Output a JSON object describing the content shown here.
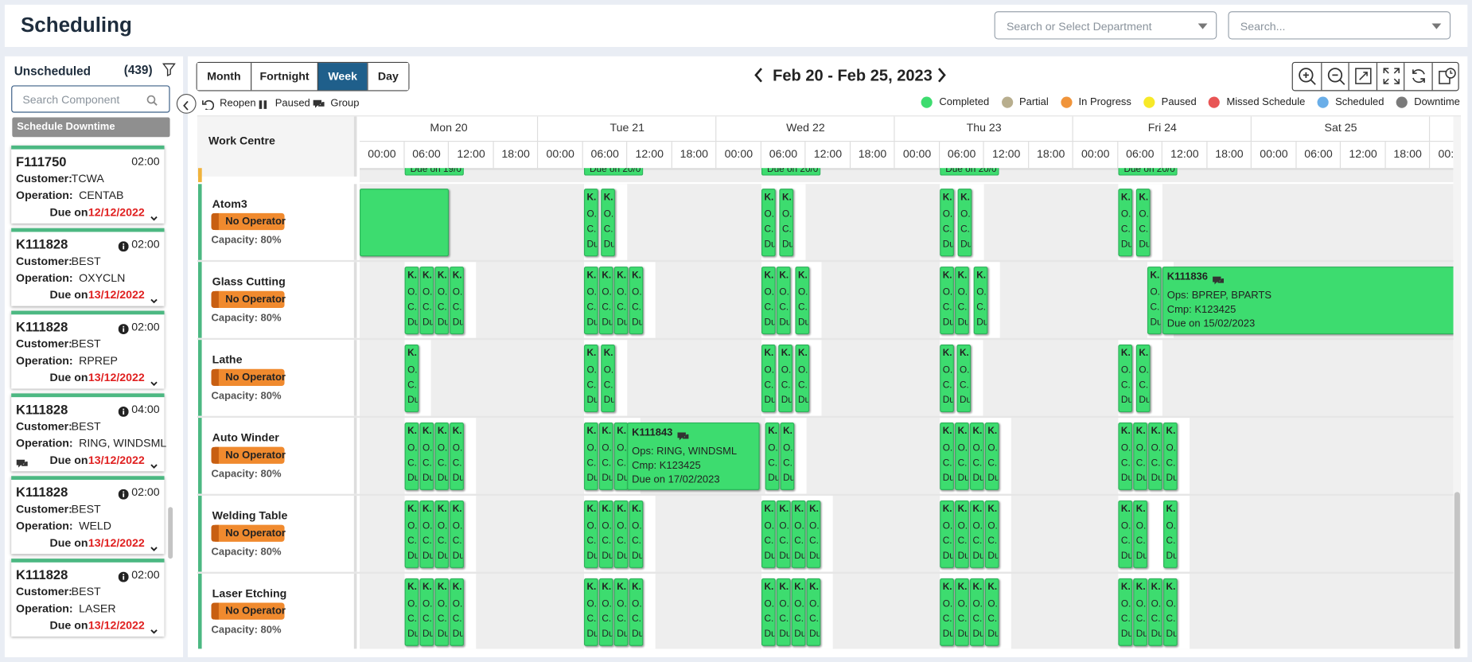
{
  "header": {
    "title": "Scheduling",
    "department_placeholder": "Search or Select Department",
    "search_placeholder": "Search..."
  },
  "sidebar": {
    "title": "Unscheduled",
    "count": "(439)",
    "search_placeholder": "Search Component",
    "downtime_button": "Schedule Downtime",
    "cards": [
      {
        "id": "F111750",
        "time": "02:00",
        "customer_label": "Customer:",
        "customer": "TCWA",
        "operation_label": "Operation:",
        "operation": "CENTAB",
        "due_label": "Due on",
        "due": "12/12/2022"
      },
      {
        "id": "K111828",
        "time": "02:00",
        "customer_label": "Customer:",
        "customer": "BEST",
        "operation_label": "Operation:",
        "operation": "OXYCLN",
        "due_label": "Due on",
        "due": "13/12/2022"
      },
      {
        "id": "K111828",
        "time": "02:00",
        "customer_label": "Customer:",
        "customer": "BEST",
        "operation_label": "Operation:",
        "operation": "RPREP",
        "due_label": "Due on",
        "due": "13/12/2022"
      },
      {
        "id": "K111828",
        "time": "04:00",
        "customer_label": "Customer:",
        "customer": "BEST",
        "operation_label": "Operation:",
        "operation": "RING, WINDSML",
        "due_label": "Due on",
        "due": "13/12/2022"
      },
      {
        "id": "K111828",
        "time": "02:00",
        "customer_label": "Customer:",
        "customer": "BEST",
        "operation_label": "Operation:",
        "operation": "WELD",
        "due_label": "Due on",
        "due": "13/12/2022"
      },
      {
        "id": "K111828",
        "time": "02:00",
        "customer_label": "Customer:",
        "customer": "BEST",
        "operation_label": "Operation:",
        "operation": "LASER",
        "due_label": "Due on",
        "due": "13/12/2022"
      }
    ]
  },
  "toolbar": {
    "views": [
      "Month",
      "Fortnight",
      "Week",
      "Day"
    ],
    "active_view": "Week",
    "date_range": "Feb 20 - Feb 25, 2023",
    "actions": [
      "Reopen",
      "Paused",
      "Group"
    ],
    "legend": [
      {
        "label": "Completed",
        "color": "#3ddc6f"
      },
      {
        "label": "Partial",
        "color": "#b8ae8e"
      },
      {
        "label": "In Progress",
        "color": "#f0943a"
      },
      {
        "label": "Paused",
        "color": "#f7e928"
      },
      {
        "label": "Missed Schedule",
        "color": "#e85555"
      },
      {
        "label": "Scheduled",
        "color": "#6aaee8"
      },
      {
        "label": "Downtime",
        "color": "#7a7a7a"
      }
    ]
  },
  "grid": {
    "column_title": "Work Centre",
    "days": [
      "Mon 20",
      "Tue 21",
      "Wed 22",
      "Thu 23",
      "Fri 24",
      "Sat 25"
    ],
    "hours": [
      "00:00",
      "06:00",
      "12:00",
      "18:00"
    ],
    "top_stubs": [
      "Due on 19/0",
      "Due on 20/0",
      "Due on 20/0",
      "Due on 20/0",
      "Due on 20/0"
    ],
    "rows": [
      {
        "name": "Atom3",
        "operator": "No Operator",
        "capacity": "Capacity: 80%"
      },
      {
        "name": "Glass Cutting",
        "operator": "No Operator",
        "capacity": "Capacity: 80%"
      },
      {
        "name": "Lathe",
        "operator": "No Operator",
        "capacity": "Capacity: 80%"
      },
      {
        "name": "Auto Winder",
        "operator": "No Operator",
        "capacity": "Capacity: 80%"
      },
      {
        "name": "Welding Table",
        "operator": "No Operator",
        "capacity": "Capacity: 80%"
      },
      {
        "name": "Laser Etching",
        "operator": "No Operator",
        "capacity": "Capacity: 80%"
      }
    ],
    "job_stub": [
      "K.",
      "O.",
      "C.",
      "Du"
    ],
    "jobs": [
      {
        "id": "K111836",
        "ops": "Ops: BPREP, BPARTS",
        "cmp": "Cmp: K123425",
        "due": "Due on 15/02/2023"
      },
      {
        "id": "K111843",
        "ops": "Ops: RING, WINDSML",
        "cmp": "Cmp: K123425",
        "due": "Due on 17/02/2023"
      }
    ]
  }
}
